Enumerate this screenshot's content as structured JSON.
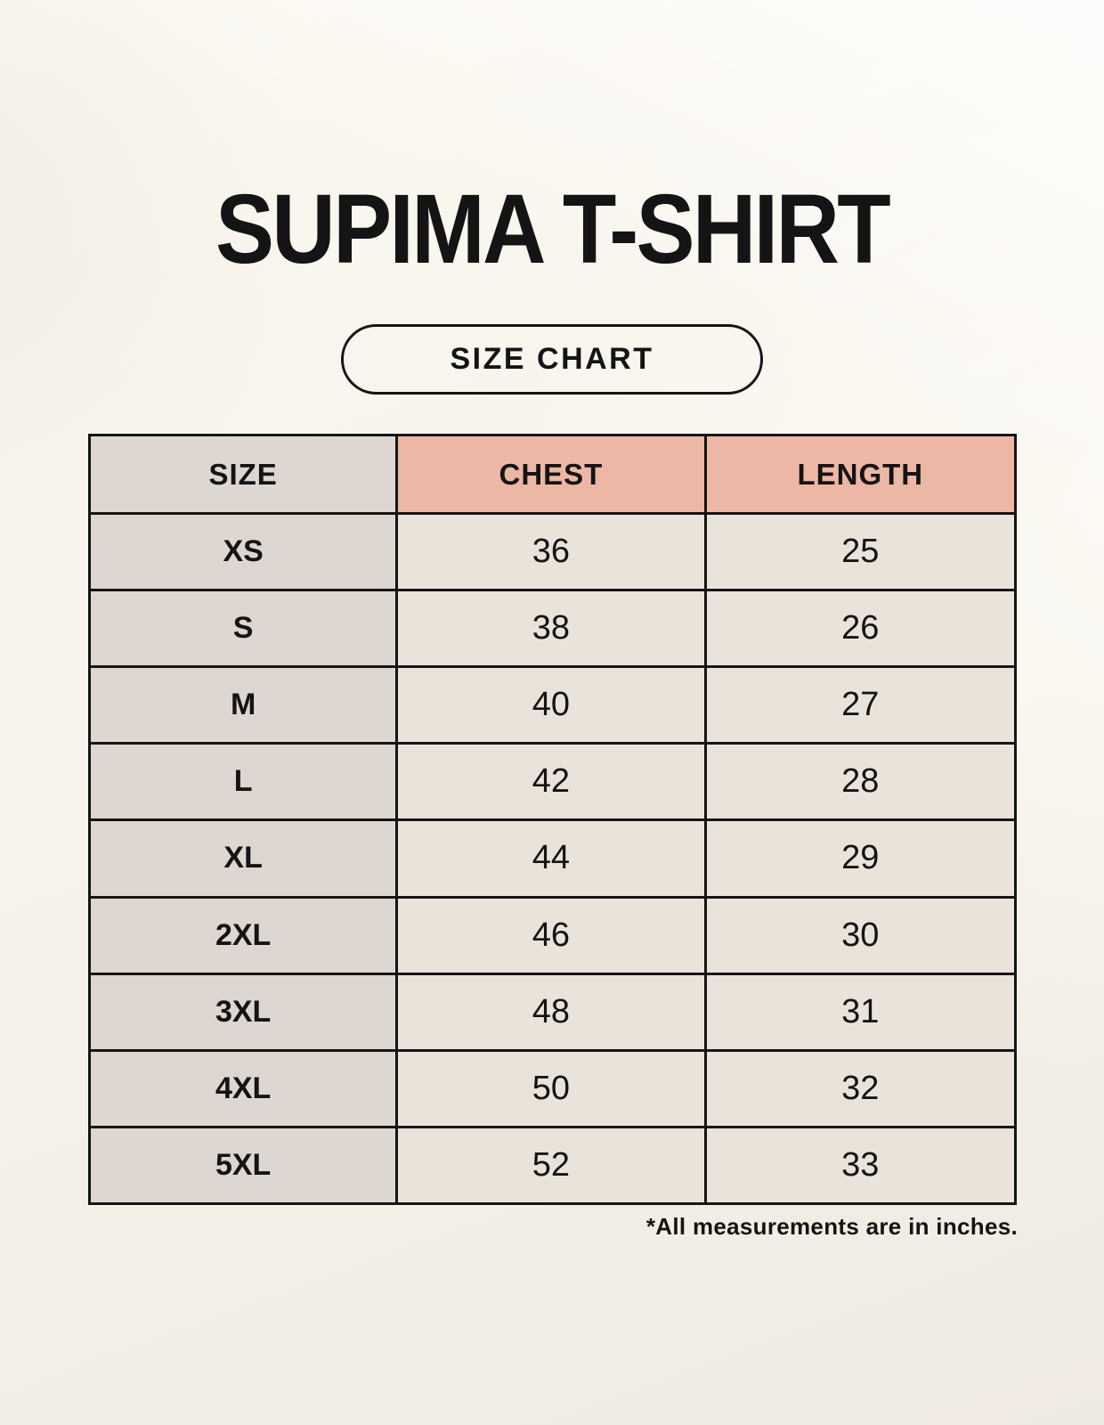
{
  "page": {
    "title": "SUPIMA T-SHIRT",
    "badge_label": "SIZE CHART",
    "footnote": "*All measurements are in inches."
  },
  "colors": {
    "background": "#f6f2ea",
    "header_pink": "#edb7a5",
    "column_gray": "#ddd6d1",
    "cell_cream": "#eae3da",
    "border": "#151515",
    "text": "#141414"
  },
  "chart_data": {
    "type": "table",
    "title": "SUPIMA T-SHIRT",
    "columns": [
      "SIZE",
      "CHEST",
      "LENGTH"
    ],
    "rows": [
      [
        "XS",
        "36",
        "25"
      ],
      [
        "S",
        "38",
        "26"
      ],
      [
        "M",
        "40",
        "27"
      ],
      [
        "L",
        "42",
        "28"
      ],
      [
        "XL",
        "44",
        "29"
      ],
      [
        "2XL",
        "46",
        "30"
      ],
      [
        "3XL",
        "48",
        "31"
      ],
      [
        "4XL",
        "50",
        "32"
      ],
      [
        "5XL",
        "52",
        "33"
      ]
    ],
    "units_note": "*All measurements are in inches.",
    "layout_hints": "3 equal columns; first column gray, header row salmon, data cells cream; black grid borders"
  }
}
